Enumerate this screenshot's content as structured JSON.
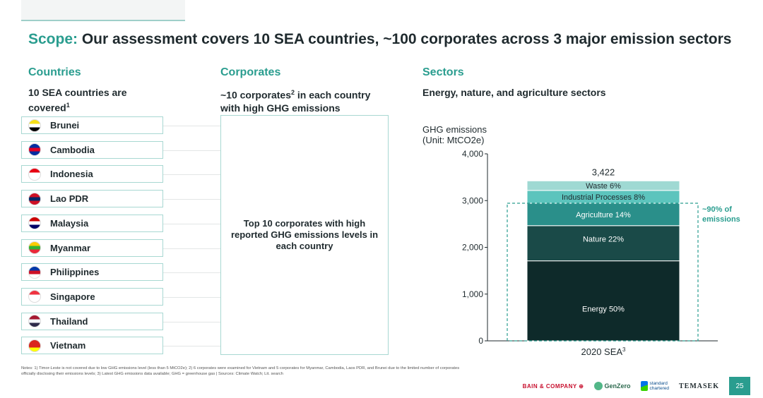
{
  "title": {
    "lead": "Scope:",
    "rest": " Our assessment covers 10 SEA countries, ~100 corporates across 3 major emission sectors"
  },
  "columns": {
    "countries": {
      "heading": "Countries",
      "sub": "10 SEA countries are covered",
      "sub_sup": "1"
    },
    "corporates": {
      "heading": "Corporates",
      "sub_pre": "~10 corporates",
      "sub_sup": "2",
      "sub_post": " in each country with high GHG emissions"
    },
    "sectors": {
      "heading": "Sectors",
      "sub": "Energy, nature, and agriculture sectors"
    }
  },
  "countries": [
    {
      "name": "Brunei",
      "flag_colors": [
        "#f7e017",
        "#ffffff",
        "#000000"
      ]
    },
    {
      "name": "Cambodia",
      "flag_colors": [
        "#032ea1",
        "#e00025",
        "#032ea1"
      ]
    },
    {
      "name": "Indonesia",
      "flag_colors": [
        "#e70011",
        "#ffffff",
        "#ffffff"
      ]
    },
    {
      "name": "Lao PDR",
      "flag_colors": [
        "#ce1126",
        "#002868",
        "#ce1126"
      ]
    },
    {
      "name": "Malaysia",
      "flag_colors": [
        "#cc0001",
        "#ffffff",
        "#010066"
      ]
    },
    {
      "name": "Myanmar",
      "flag_colors": [
        "#fecb00",
        "#34b233",
        "#ea2839"
      ]
    },
    {
      "name": "Philippines",
      "flag_colors": [
        "#0038a8",
        "#ce1126",
        "#ffffff"
      ]
    },
    {
      "name": "Singapore",
      "flag_colors": [
        "#ef3340",
        "#ffffff",
        "#ffffff"
      ]
    },
    {
      "name": "Thailand",
      "flag_colors": [
        "#a51931",
        "#f4f5f8",
        "#2d2a4a"
      ]
    },
    {
      "name": "Vietnam",
      "flag_colors": [
        "#da251d",
        "#da251d",
        "#ffff00"
      ]
    }
  ],
  "corporates_box": {
    "text": "Top 10 corporates with high reported GHG emissions levels in each country"
  },
  "chart_data": {
    "type": "bar",
    "stacked": true,
    "ylabel": "GHG emissions\n(Unit: MtCO2e)",
    "ylim": [
      0,
      4000
    ],
    "yticks": [
      0,
      1000,
      2000,
      3000,
      4000
    ],
    "ytick_labels": [
      "0",
      "1,000",
      "2,000",
      "3,000",
      "4,000"
    ],
    "categories": [
      "2020 SEA"
    ],
    "category_sup": "3",
    "total_label": "3,422",
    "total": 3422,
    "series": [
      {
        "name": "Energy 50%",
        "value": 1711,
        "color": "#0e2a2a",
        "text_color": "#ffffff"
      },
      {
        "name": "Nature 22%",
        "value": 753,
        "color": "#1a4a48",
        "text_color": "#ffffff"
      },
      {
        "name": "Agriculture 14%",
        "value": 479,
        "color": "#2a8f8a",
        "text_color": "#ffffff"
      },
      {
        "name": "Industrial Processes 8%",
        "value": 274,
        "color": "#5cc4bd",
        "text_color": "#1f2a2e"
      },
      {
        "name": "Waste 6%",
        "value": 205,
        "color": "#9fd9d3",
        "text_color": "#1f2a2e"
      }
    ],
    "annotation": {
      "line1": "~90% of",
      "line2": "emissions"
    },
    "annotation_covers": 3
  },
  "notes": "Notes: 1) Timor-Leste is not covered due to low GHG emissions level (less than 5 MtCO2e); 2) 6 corporates were examined for Vietnam and 5 corporates for Myanmar, Cambodia, Laos PDR, and Brunei due to the limited number of corporates officially disclosing their emissions levels; 3) Latest GHG emissions data available; GHG = greenhouse gas | Sources: Climate Watch; Lit. search",
  "footer": {
    "bain": "BAIN & COMPANY",
    "genzero": "GenZero",
    "sc_line1": "standard",
    "sc_line2": "chartered",
    "temasek": "TEMASEK",
    "page": "25"
  }
}
